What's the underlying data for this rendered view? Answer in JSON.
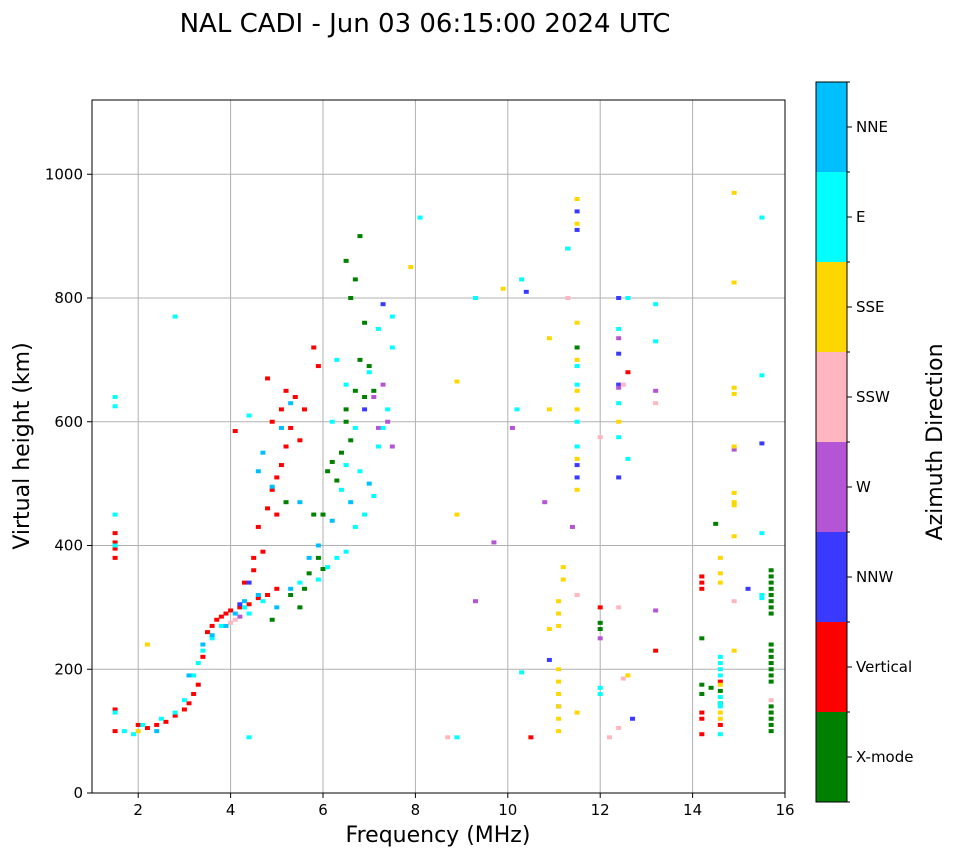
{
  "chart_data": {
    "type": "scatter",
    "title": "NAL CADI - Jun 03 06:15:00 2024 UTC",
    "xlabel": "Frequency (MHz)",
    "ylabel": "Virtual height (km)",
    "xlim": [
      1,
      16
    ],
    "ylim": [
      0,
      1120
    ],
    "xticks": [
      2,
      4,
      6,
      8,
      10,
      12,
      14,
      16
    ],
    "yticks": [
      0,
      200,
      400,
      600,
      800,
      1000
    ],
    "grid": true,
    "colorbar": {
      "label": "Azimuth Direction",
      "categories": [
        "X-mode",
        "Vertical",
        "NNW",
        "W",
        "SSW",
        "SSE",
        "E",
        "NNE"
      ],
      "colors": [
        "#008000",
        "#ff0000",
        "#3a3aff",
        "#b455d6",
        "#ffb6c1",
        "#ffd700",
        "#00ffff",
        "#00bfff"
      ]
    },
    "series": [
      {
        "name": "X-mode",
        "category": 0,
        "points": [
          [
            5.7,
            355
          ],
          [
            5.9,
            380
          ],
          [
            6.0,
            362
          ],
          [
            6.1,
            520
          ],
          [
            6.2,
            535
          ],
          [
            6.3,
            505
          ],
          [
            6.4,
            550
          ],
          [
            6.5,
            600
          ],
          [
            6.5,
            620
          ],
          [
            6.6,
            570
          ],
          [
            6.7,
            650
          ],
          [
            6.8,
            700
          ],
          [
            6.9,
            640
          ],
          [
            7.0,
            690
          ],
          [
            6.6,
            800
          ],
          [
            6.7,
            830
          ],
          [
            6.8,
            900
          ],
          [
            6.5,
            860
          ],
          [
            6.9,
            760
          ],
          [
            7.1,
            650
          ],
          [
            5.5,
            300
          ],
          [
            5.6,
            330
          ],
          [
            5.3,
            320
          ],
          [
            4.9,
            280
          ],
          [
            5.2,
            470
          ],
          [
            5.8,
            450
          ],
          [
            6.0,
            450
          ],
          [
            11.5,
            720
          ],
          [
            12.0,
            265
          ],
          [
            12.0,
            275
          ],
          [
            14.2,
            160
          ],
          [
            14.2,
            175
          ],
          [
            14.2,
            250
          ],
          [
            14.6,
            145
          ],
          [
            14.6,
            165
          ],
          [
            15.7,
            100
          ],
          [
            15.7,
            110
          ],
          [
            15.7,
            120
          ],
          [
            15.7,
            130
          ],
          [
            15.7,
            140
          ],
          [
            15.7,
            180
          ],
          [
            15.7,
            190
          ],
          [
            15.7,
            200
          ],
          [
            15.7,
            210
          ],
          [
            15.7,
            220
          ],
          [
            15.7,
            230
          ],
          [
            15.7,
            240
          ],
          [
            15.7,
            290
          ],
          [
            15.7,
            300
          ],
          [
            15.7,
            310
          ],
          [
            15.7,
            320
          ],
          [
            15.7,
            330
          ],
          [
            15.7,
            340
          ],
          [
            15.7,
            350
          ],
          [
            15.7,
            360
          ],
          [
            14.4,
            170
          ],
          [
            14.5,
            435
          ]
        ]
      },
      {
        "name": "Vertical",
        "category": 1,
        "points": [
          [
            1.5,
            135
          ],
          [
            1.5,
            100
          ],
          [
            1.5,
            380
          ],
          [
            1.5,
            395
          ],
          [
            1.5,
            405
          ],
          [
            1.5,
            420
          ],
          [
            2.0,
            110
          ],
          [
            2.2,
            105
          ],
          [
            2.4,
            110
          ],
          [
            2.6,
            115
          ],
          [
            2.8,
            125
          ],
          [
            3.0,
            135
          ],
          [
            3.1,
            145
          ],
          [
            3.2,
            160
          ],
          [
            3.3,
            175
          ],
          [
            3.4,
            220
          ],
          [
            3.5,
            260
          ],
          [
            3.6,
            270
          ],
          [
            3.7,
            280
          ],
          [
            3.8,
            285
          ],
          [
            3.9,
            290
          ],
          [
            4.0,
            295
          ],
          [
            4.2,
            300
          ],
          [
            4.4,
            305
          ],
          [
            4.6,
            315
          ],
          [
            4.8,
            320
          ],
          [
            5.0,
            330
          ],
          [
            4.5,
            360
          ],
          [
            4.7,
            390
          ],
          [
            4.6,
            430
          ],
          [
            4.8,
            460
          ],
          [
            4.9,
            490
          ],
          [
            5.0,
            510
          ],
          [
            5.1,
            530
          ],
          [
            5.2,
            560
          ],
          [
            5.3,
            590
          ],
          [
            5.1,
            620
          ],
          [
            5.4,
            640
          ],
          [
            5.2,
            650
          ],
          [
            4.8,
            670
          ],
          [
            4.9,
            600
          ],
          [
            5.6,
            620
          ],
          [
            5.8,
            720
          ],
          [
            5.9,
            690
          ],
          [
            4.1,
            585
          ],
          [
            5.5,
            570
          ],
          [
            5.0,
            450
          ],
          [
            4.5,
            380
          ],
          [
            4.3,
            340
          ],
          [
            14.2,
            330
          ],
          [
            14.2,
            340
          ],
          [
            14.2,
            350
          ],
          [
            14.2,
            120
          ],
          [
            14.2,
            130
          ],
          [
            14.2,
            95
          ],
          [
            14.6,
            110
          ],
          [
            14.6,
            180
          ],
          [
            12.6,
            680
          ],
          [
            13.2,
            230
          ],
          [
            12.0,
            300
          ],
          [
            10.5,
            90
          ]
        ]
      },
      {
        "name": "NNW",
        "category": 2,
        "points": [
          [
            11.5,
            940
          ],
          [
            11.5,
            910
          ],
          [
            11.3,
            880
          ],
          [
            11.5,
            510
          ],
          [
            11.5,
            530
          ],
          [
            11.1,
            140
          ],
          [
            10.9,
            215
          ],
          [
            12.4,
            710
          ],
          [
            12.4,
            660
          ],
          [
            12.4,
            510
          ],
          [
            12.7,
            120
          ],
          [
            7.3,
            790
          ],
          [
            6.9,
            620
          ],
          [
            10.4,
            810
          ],
          [
            12.4,
            800
          ],
          [
            15.5,
            565
          ],
          [
            15.2,
            330
          ],
          [
            4.2,
            305
          ],
          [
            4.4,
            340
          ]
        ]
      },
      {
        "name": "W",
        "category": 3,
        "points": [
          [
            7.2,
            590
          ],
          [
            7.1,
            640
          ],
          [
            7.3,
            660
          ],
          [
            7.4,
            600
          ],
          [
            7.5,
            560
          ],
          [
            10.8,
            470
          ],
          [
            12.4,
            655
          ],
          [
            12.0,
            250
          ],
          [
            13.2,
            295
          ],
          [
            13.2,
            650
          ],
          [
            14.9,
            555
          ],
          [
            10.1,
            590
          ],
          [
            9.7,
            405
          ],
          [
            9.3,
            310
          ],
          [
            11.4,
            430
          ],
          [
            12.4,
            735
          ],
          [
            4.2,
            285
          ]
        ]
      },
      {
        "name": "SSW",
        "category": 4,
        "points": [
          [
            11.5,
            320
          ],
          [
            12.2,
            90
          ],
          [
            12.0,
            575
          ],
          [
            12.4,
            300
          ],
          [
            12.4,
            105
          ],
          [
            12.5,
            185
          ],
          [
            14.9,
            310
          ],
          [
            15.7,
            150
          ],
          [
            13.2,
            630
          ],
          [
            8.7,
            90
          ],
          [
            11.3,
            800
          ],
          [
            12.5,
            660
          ],
          [
            4.0,
            275
          ],
          [
            4.1,
            280
          ]
        ]
      },
      {
        "name": "SSE",
        "category": 5,
        "points": [
          [
            11.5,
            960
          ],
          [
            11.5,
            920
          ],
          [
            11.5,
            760
          ],
          [
            11.5,
            700
          ],
          [
            11.5,
            650
          ],
          [
            11.5,
            620
          ],
          [
            11.5,
            540
          ],
          [
            11.5,
            490
          ],
          [
            11.1,
            310
          ],
          [
            11.1,
            290
          ],
          [
            11.1,
            270
          ],
          [
            11.1,
            200
          ],
          [
            11.1,
            180
          ],
          [
            11.1,
            160
          ],
          [
            11.1,
            140
          ],
          [
            11.1,
            120
          ],
          [
            11.1,
            100
          ],
          [
            11.2,
            365
          ],
          [
            11.2,
            345
          ],
          [
            10.9,
            735
          ],
          [
            10.9,
            620
          ],
          [
            14.9,
            970
          ],
          [
            14.9,
            825
          ],
          [
            14.9,
            655
          ],
          [
            14.9,
            645
          ],
          [
            14.9,
            560
          ],
          [
            14.9,
            485
          ],
          [
            14.9,
            470
          ],
          [
            14.9,
            465
          ],
          [
            14.9,
            415
          ],
          [
            14.9,
            230
          ],
          [
            14.6,
            380
          ],
          [
            14.6,
            355
          ],
          [
            14.6,
            340
          ],
          [
            14.6,
            175
          ],
          [
            14.6,
            130
          ],
          [
            14.6,
            120
          ],
          [
            12.4,
            600
          ],
          [
            12.6,
            190
          ],
          [
            8.9,
            665
          ],
          [
            8.9,
            450
          ],
          [
            9.9,
            815
          ],
          [
            7.9,
            850
          ],
          [
            2.2,
            240
          ],
          [
            2.0,
            100
          ],
          [
            11.5,
            130
          ],
          [
            10.9,
            265
          ]
        ]
      },
      {
        "name": "E",
        "category": 6,
        "points": [
          [
            1.5,
            640
          ],
          [
            1.5,
            625
          ],
          [
            1.5,
            450
          ],
          [
            1.5,
            400
          ],
          [
            1.5,
            130
          ],
          [
            1.7,
            100
          ],
          [
            1.9,
            95
          ],
          [
            2.1,
            110
          ],
          [
            2.5,
            120
          ],
          [
            2.8,
            130
          ],
          [
            3.0,
            150
          ],
          [
            3.2,
            190
          ],
          [
            3.3,
            210
          ],
          [
            3.4,
            230
          ],
          [
            3.6,
            250
          ],
          [
            3.8,
            270
          ],
          [
            4.3,
            300
          ],
          [
            4.4,
            290
          ],
          [
            4.7,
            310
          ],
          [
            5.5,
            340
          ],
          [
            5.9,
            345
          ],
          [
            6.1,
            365
          ],
          [
            6.3,
            380
          ],
          [
            6.5,
            390
          ],
          [
            6.7,
            430
          ],
          [
            6.9,
            450
          ],
          [
            7.1,
            480
          ],
          [
            7.2,
            560
          ],
          [
            7.3,
            590
          ],
          [
            7.4,
            620
          ],
          [
            6.8,
            520
          ],
          [
            6.5,
            530
          ],
          [
            6.4,
            490
          ],
          [
            6.7,
            590
          ],
          [
            6.2,
            600
          ],
          [
            6.3,
            700
          ],
          [
            6.5,
            660
          ],
          [
            7.0,
            680
          ],
          [
            7.2,
            750
          ],
          [
            7.5,
            770
          ],
          [
            7.5,
            720
          ],
          [
            8.1,
            930
          ],
          [
            9.3,
            800
          ],
          [
            10.3,
            830
          ],
          [
            10.2,
            620
          ],
          [
            11.3,
            880
          ],
          [
            11.5,
            690
          ],
          [
            11.5,
            660
          ],
          [
            11.5,
            600
          ],
          [
            11.5,
            560
          ],
          [
            12.4,
            750
          ],
          [
            12.4,
            630
          ],
          [
            12.4,
            575
          ],
          [
            12.6,
            540
          ],
          [
            12.6,
            800
          ],
          [
            13.2,
            730
          ],
          [
            13.2,
            790
          ],
          [
            14.6,
            220
          ],
          [
            14.6,
            210
          ],
          [
            14.6,
            200
          ],
          [
            14.6,
            190
          ],
          [
            14.6,
            155
          ],
          [
            14.6,
            145
          ],
          [
            14.6,
            140
          ],
          [
            14.6,
            95
          ],
          [
            15.5,
            930
          ],
          [
            15.5,
            675
          ],
          [
            15.5,
            420
          ],
          [
            15.5,
            315
          ],
          [
            15.5,
            320
          ],
          [
            12.0,
            170
          ],
          [
            12.0,
            160
          ],
          [
            8.9,
            90
          ],
          [
            4.4,
            610
          ],
          [
            4.4,
            90
          ],
          [
            2.8,
            770
          ],
          [
            10.3,
            195
          ]
        ]
      },
      {
        "name": "NNE",
        "category": 7,
        "points": [
          [
            3.4,
            240
          ],
          [
            3.6,
            255
          ],
          [
            3.9,
            270
          ],
          [
            4.1,
            290
          ],
          [
            4.3,
            310
          ],
          [
            4.6,
            320
          ],
          [
            5.0,
            300
          ],
          [
            5.3,
            330
          ],
          [
            5.7,
            380
          ],
          [
            5.9,
            400
          ],
          [
            6.2,
            440
          ],
          [
            6.6,
            470
          ],
          [
            7.0,
            500
          ],
          [
            4.9,
            495
          ],
          [
            5.1,
            590
          ],
          [
            5.3,
            630
          ],
          [
            5.5,
            470
          ],
          [
            4.6,
            520
          ],
          [
            4.7,
            550
          ],
          [
            2.4,
            100
          ],
          [
            3.1,
            190
          ]
        ]
      }
    ]
  }
}
